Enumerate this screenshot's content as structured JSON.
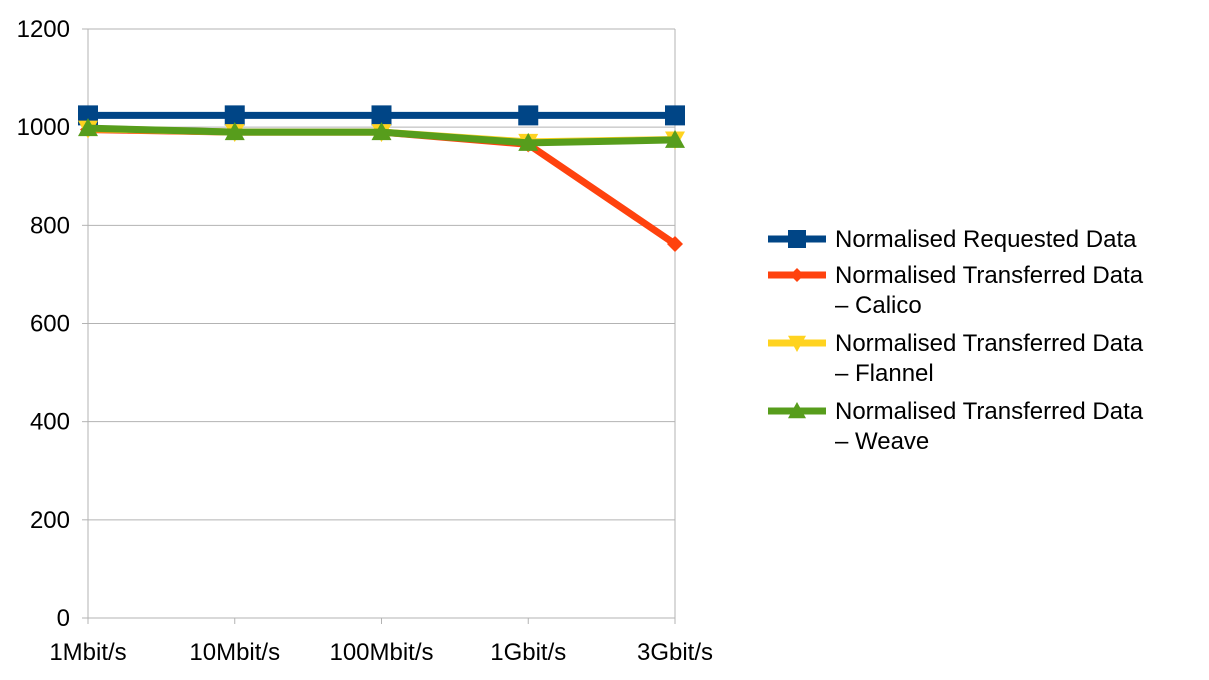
{
  "chart_data": {
    "type": "line",
    "categories": [
      "1Mbit/s",
      "10Mbit/s",
      "100Mbit/s",
      "1Gbit/s",
      "3Gbit/s"
    ],
    "ylim": [
      0,
      1200
    ],
    "yticks": [
      0,
      200,
      400,
      600,
      800,
      1000,
      1200
    ],
    "grid": true,
    "legend_position": "right",
    "series": [
      {
        "name": "Normalised Requested Data",
        "legend_lines": [
          "Normalised Requested Data"
        ],
        "color": "#004586",
        "marker": "square",
        "values": [
          1024,
          1024,
          1024,
          1024,
          1024
        ]
      },
      {
        "name": "Normalised Transferred Data – Calico",
        "legend_lines": [
          "Normalised Transferred Data",
          "– Calico"
        ],
        "color": "#ff420e",
        "marker": "diamond",
        "values": [
          995,
          990,
          990,
          965,
          762
        ]
      },
      {
        "name": "Normalised Transferred Data – Flannel",
        "legend_lines": [
          "Normalised Transferred Data",
          "– Flannel"
        ],
        "color": "#ffd320",
        "marker": "triangle-down",
        "values": [
          997,
          990,
          990,
          970,
          975
        ]
      },
      {
        "name": "Normalised Transferred Data – Weave",
        "legend_lines": [
          "Normalised Transferred Data",
          "– Weave"
        ],
        "color": "#579d1c",
        "marker": "triangle-up",
        "values": [
          998,
          990,
          990,
          968,
          974
        ]
      }
    ]
  }
}
